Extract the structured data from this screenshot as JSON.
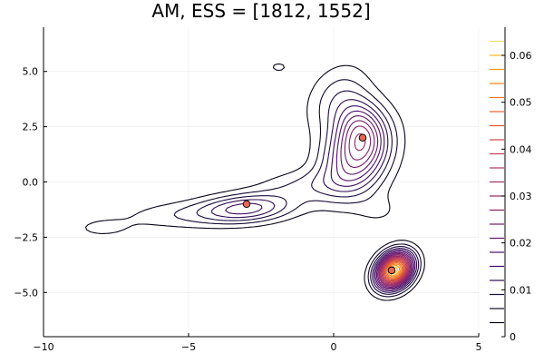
{
  "chart_data": {
    "type": "contour",
    "title": "AM, ESS = [1812, 1552]",
    "xlabel": "",
    "ylabel": "",
    "xlim": [
      -10,
      5
    ],
    "ylim": [
      -7,
      7
    ],
    "x_ticks": [
      -10,
      -5,
      0,
      5
    ],
    "x_tick_labels": [
      "−10",
      "−5",
      "0",
      "5"
    ],
    "y_ticks": [
      -5,
      -2.5,
      0,
      2.5,
      5
    ],
    "y_tick_labels": [
      "−5.0",
      "−2.5",
      "0.0",
      "2.5",
      "5.0"
    ],
    "grid": true,
    "colormap": "inferno",
    "colorbar": {
      "range": [
        0,
        0.066
      ],
      "ticks": [
        0,
        0.01,
        0.02,
        0.03,
        0.04,
        0.05,
        0.06
      ],
      "tick_labels": [
        "0",
        "0.01",
        "0.02",
        "0.03",
        "0.04",
        "0.05",
        "0.06"
      ],
      "levels": [
        0.003,
        0.006,
        0.009,
        0.012,
        0.015,
        0.018,
        0.021,
        0.024,
        0.027,
        0.03,
        0.033,
        0.036,
        0.039,
        0.042,
        0.045,
        0.048,
        0.051,
        0.054,
        0.057,
        0.06,
        0.063
      ]
    },
    "points": [
      {
        "x": 1,
        "y": 2
      },
      {
        "x": -3,
        "y": -1
      },
      {
        "x": 2,
        "y": -4
      }
    ],
    "point_color": "#e26952",
    "modes": [
      {
        "x": 2.1,
        "y": -4.0,
        "peak": 0.062
      },
      {
        "x": 0.7,
        "y": 1.5,
        "peak": 0.033
      },
      {
        "x": -3.0,
        "y": -1.2,
        "peak": 0.015
      }
    ]
  }
}
